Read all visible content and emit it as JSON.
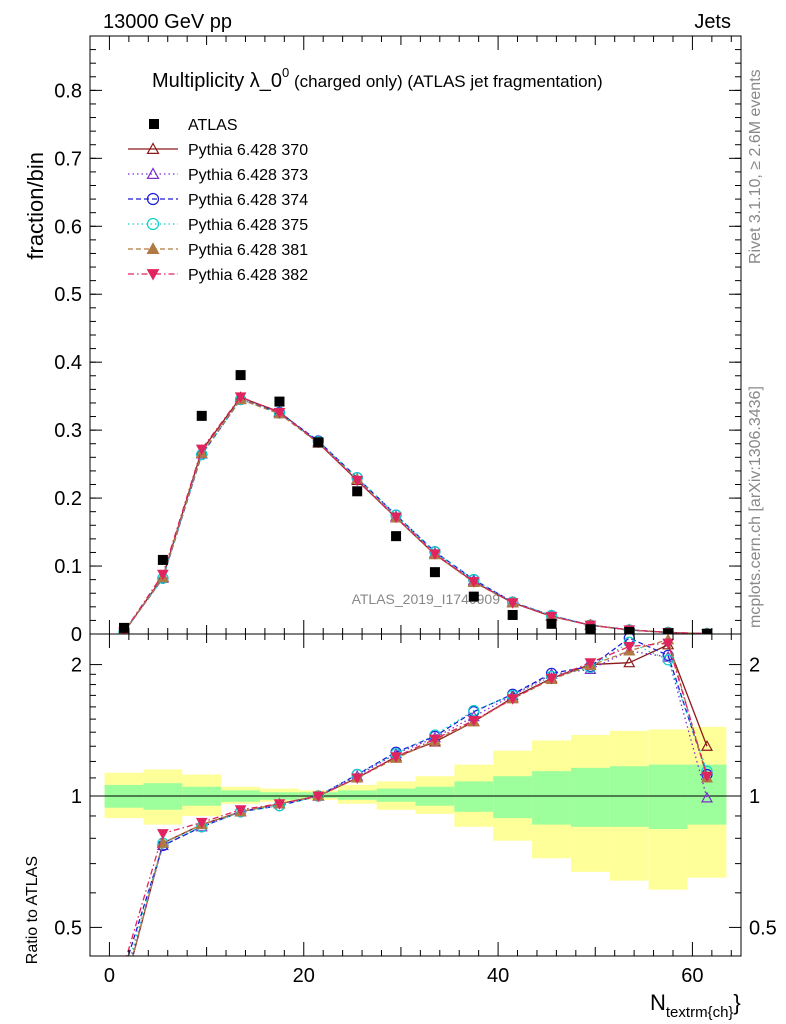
{
  "header": {
    "energy_label": "13000 GeV pp",
    "process_label": "Jets"
  },
  "side_labels": {
    "rivet": "Rivet 3.1.10, ≥ 2.6M events",
    "mcplots": "mcplots.cern.ch [arXiv:1306.3436]"
  },
  "watermark": "ATLAS_2019_I1740909",
  "chart_data": [
    {
      "type": "scatter",
      "title": "Multiplicity λ_0^0 (charged only) (ATLAS jet fragmentation)",
      "title_parts": {
        "main": "Multiplicity λ_0",
        "sup": "0",
        "rest": " (charged only) (ATLAS jet fragmentation)"
      },
      "ylabel": "fraction/bin",
      "xlim": [
        -2,
        65
      ],
      "ylim": [
        0,
        0.88
      ],
      "yticks": [
        "0",
        "0.1",
        "0.2",
        "0.3",
        "0.4",
        "0.5",
        "0.6",
        "0.7",
        "0.8"
      ],
      "legend_position": "top-left",
      "x": [
        1.5,
        5.5,
        9.5,
        13.5,
        17.5,
        21.5,
        25.5,
        29.5,
        33.5,
        37.5,
        41.5,
        45.5,
        49.5,
        53.5,
        57.5,
        61.5
      ],
      "data": {
        "name": "ATLAS",
        "values": [
          0.009,
          0.109,
          0.321,
          0.381,
          0.342,
          0.282,
          0.21,
          0.144,
          0.091,
          0.055,
          0.028,
          0.015,
          0.007,
          0.003,
          0.001,
          0.0004
        ]
      },
      "series": [
        {
          "name": "Pythia 6.428 370",
          "color": "#8b1a1a",
          "marker": "triangle-open",
          "dash": "solid",
          "values": [
            0.003,
            0.084,
            0.27,
            0.348,
            0.327,
            0.281,
            0.226,
            0.171,
            0.117,
            0.077,
            0.046,
            0.026,
            0.013,
            0.006,
            0.0023,
            0.0005
          ]
        },
        {
          "name": "Pythia 6.428 373",
          "color": "#7b2fd0",
          "marker": "triangle-open",
          "dash": "dotted",
          "values": [
            0.003,
            0.082,
            0.265,
            0.345,
            0.326,
            0.283,
            0.228,
            0.173,
            0.119,
            0.079,
            0.047,
            0.027,
            0.013,
            0.006,
            0.0022,
            0.0004
          ]
        },
        {
          "name": "Pythia 6.428 374",
          "color": "#1c1cd6",
          "marker": "circle-open",
          "dash": "dashed",
          "values": [
            0.003,
            0.082,
            0.264,
            0.345,
            0.326,
            0.284,
            0.23,
            0.175,
            0.121,
            0.08,
            0.047,
            0.027,
            0.013,
            0.006,
            0.0022,
            0.0004
          ]
        },
        {
          "name": "Pythia 6.428 375",
          "color": "#10d2c8",
          "marker": "circle-open",
          "dash": "dotted",
          "values": [
            0.003,
            0.082,
            0.264,
            0.345,
            0.325,
            0.283,
            0.23,
            0.175,
            0.121,
            0.08,
            0.047,
            0.027,
            0.013,
            0.006,
            0.0022,
            0.0004
          ]
        },
        {
          "name": "Pythia 6.428 381",
          "color": "#b07a44",
          "marker": "triangle-filled",
          "dash": "dashed",
          "values": [
            0.003,
            0.083,
            0.266,
            0.345,
            0.324,
            0.281,
            0.228,
            0.171,
            0.117,
            0.076,
            0.046,
            0.026,
            0.013,
            0.006,
            0.0023,
            0.0004
          ]
        },
        {
          "name": "Pythia 6.428 382",
          "color": "#e0245e",
          "marker": "triangledown-filled",
          "dash": "dashdot",
          "values": [
            0.003,
            0.088,
            0.272,
            0.349,
            0.326,
            0.282,
            0.226,
            0.172,
            0.118,
            0.077,
            0.046,
            0.026,
            0.013,
            0.006,
            0.0022,
            0.0004
          ]
        }
      ]
    },
    {
      "type": "line",
      "ylabel": "Ratio to ATLAS",
      "xlabel_main": "N",
      "xlabel_sub": "textrm{ch}",
      "xlabel_close": "}",
      "xlim": [
        -2,
        65
      ],
      "ylim": [
        0.43,
        2.35
      ],
      "yscale": "log",
      "xticks": [
        "0",
        "20",
        "40",
        "60"
      ],
      "yticks": [
        "0.5",
        "1",
        "2"
      ],
      "band_edges": [
        -0.5,
        3.5,
        7.5,
        11.5,
        15.5,
        19.5,
        23.5,
        27.5,
        31.5,
        35.5,
        39.5,
        43.5,
        47.5,
        51.5,
        55.5,
        59.5,
        63.5
      ],
      "band_stat": {
        "color": "#9cff9c",
        "lo": [
          0.94,
          0.93,
          0.95,
          0.97,
          0.98,
          0.99,
          0.98,
          0.97,
          0.95,
          0.92,
          0.89,
          0.86,
          0.85,
          0.85,
          0.84,
          0.86
        ],
        "hi": [
          1.06,
          1.07,
          1.05,
          1.03,
          1.02,
          1.02,
          1.03,
          1.04,
          1.05,
          1.08,
          1.11,
          1.14,
          1.16,
          1.17,
          1.18,
          1.18
        ]
      },
      "band_total": {
        "color": "#ffff99",
        "lo": [
          0.89,
          0.86,
          0.9,
          0.96,
          0.97,
          0.98,
          0.96,
          0.93,
          0.91,
          0.85,
          0.79,
          0.72,
          0.67,
          0.64,
          0.61,
          0.65
        ],
        "hi": [
          1.13,
          1.15,
          1.12,
          1.05,
          1.04,
          1.03,
          1.06,
          1.08,
          1.11,
          1.18,
          1.27,
          1.34,
          1.38,
          1.41,
          1.42,
          1.44
        ]
      },
      "x": [
        1.5,
        5.5,
        9.5,
        13.5,
        17.5,
        21.5,
        25.5,
        29.5,
        33.5,
        37.5,
        41.5,
        45.5,
        49.5,
        53.5,
        57.5,
        61.5
      ],
      "series": [
        {
          "name": "Pythia 6.428 370",
          "values": [
            0.36,
            0.78,
            0.86,
            0.92,
            0.96,
            1.0,
            1.1,
            1.23,
            1.33,
            1.48,
            1.68,
            1.86,
            2.0,
            2.02,
            2.22,
            1.3
          ]
        },
        {
          "name": "Pythia 6.428 373",
          "values": [
            0.37,
            0.77,
            0.85,
            0.92,
            0.96,
            1.0,
            1.11,
            1.25,
            1.36,
            1.52,
            1.7,
            1.9,
            1.95,
            2.15,
            2.08,
            0.99
          ]
        },
        {
          "name": "Pythia 6.428 374",
          "values": [
            0.4,
            0.77,
            0.85,
            0.92,
            0.95,
            1.0,
            1.12,
            1.26,
            1.37,
            1.56,
            1.71,
            1.91,
            1.98,
            2.3,
            2.1,
            1.12
          ]
        },
        {
          "name": "Pythia 6.428 375",
          "values": [
            0.38,
            0.78,
            0.85,
            0.92,
            0.95,
            1.0,
            1.12,
            1.25,
            1.38,
            1.57,
            1.7,
            1.88,
            1.97,
            2.25,
            2.05,
            1.14
          ]
        },
        {
          "name": "Pythia 6.428 381",
          "values": [
            0.36,
            0.78,
            0.86,
            0.92,
            0.96,
            1.0,
            1.1,
            1.22,
            1.34,
            1.48,
            1.67,
            1.85,
            1.99,
            2.15,
            2.28,
            1.1
          ]
        },
        {
          "name": "Pythia 6.428 382",
          "values": [
            0.41,
            0.82,
            0.87,
            0.93,
            0.96,
            1.0,
            1.1,
            1.23,
            1.35,
            1.49,
            1.67,
            1.86,
            2.02,
            2.2,
            2.24,
            1.11
          ]
        }
      ]
    }
  ]
}
